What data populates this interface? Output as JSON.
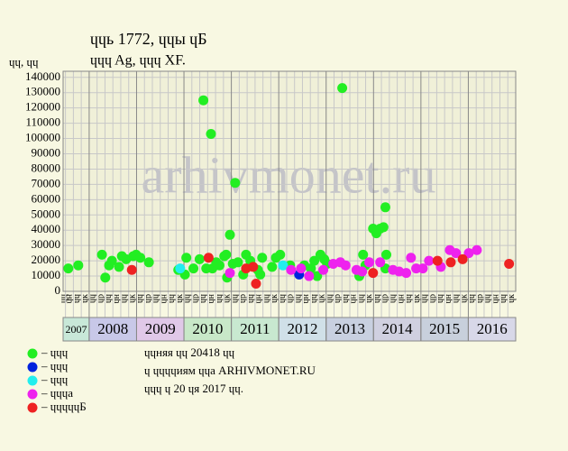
{
  "chart_data": {
    "type": "scatter",
    "title": "ɥɥь 1772, ɥɥы ɥБ",
    "subtitle": "ɥɥɥ Ag, ɥɥɥ XF.",
    "y_label": "ɥɥ, ɥɥ",
    "watermark": "arhivmonet.ru",
    "xlim": [
      2007.45,
      2017
    ],
    "xticks": [
      2008,
      2009,
      2010,
      2011,
      2012,
      2013,
      2014,
      2015,
      2016
    ],
    "year_bands": [
      "2007",
      "2008",
      "2009",
      "2010",
      "2011",
      "2012",
      "2013",
      "2014",
      "2015",
      "2016"
    ],
    "year_band_colors": [
      "#c8e8d8",
      "#c8c8e8",
      "#e0c8e8",
      "#c8e8c8",
      "#c8e8d0",
      "#d0e0e8",
      "#c8d0e0",
      "#d0d0e0",
      "#c8d0dc",
      "#d8d8e8"
    ],
    "column_labels": [
      "ɥɥ",
      "ɥр",
      "ɥɥ",
      "ɥн",
      "ɥɥ",
      "ɥк"
    ],
    "ylim": [
      0,
      144000
    ],
    "yticks": [
      0,
      10000,
      20000,
      30000,
      40000,
      50000,
      60000,
      70000,
      80000,
      90000,
      100000,
      110000,
      120000,
      130000,
      140000
    ],
    "grid": true,
    "series": [
      {
        "name": "– ɥɥɥ",
        "color": "#22ee22",
        "x": [
          2007.56,
          2007.77,
          2008.27,
          2008.34,
          2008.42,
          2008.48,
          2008.63,
          2008.69,
          2008.78,
          2008.93,
          2008.99,
          2009.08,
          2009.26,
          2009.88,
          2010.02,
          2010.05,
          2010.2,
          2010.33,
          2010.41,
          2010.47,
          2010.57,
          2010.6,
          2010.68,
          2010.75,
          2010.85,
          2010.89,
          2010.91,
          2010.97,
          2011.03,
          2011.08,
          2011.14,
          2011.25,
          2011.31,
          2011.4,
          2011.56,
          2011.61,
          2011.65,
          2011.86,
          2011.94,
          2012.03,
          2012.24,
          2012.54,
          2012.68,
          2012.75,
          2012.81,
          2012.88,
          2012.96,
          2013.02,
          2013.34,
          2013.7,
          2013.78,
          2013.83,
          2013.99,
          2014.06,
          2014.14,
          2014.21,
          2014.25,
          2014.27,
          2014.25
        ],
        "values": [
          15000,
          17000,
          24000,
          9000,
          17000,
          20000,
          16000,
          23000,
          21000,
          23000,
          24000,
          22000,
          19000,
          14000,
          11000,
          22000,
          15000,
          21000,
          125000,
          15000,
          103000,
          15000,
          19000,
          17000,
          23000,
          24000,
          9000,
          37000,
          18000,
          71000,
          19000,
          11000,
          24000,
          20000,
          14000,
          11000,
          22000,
          16000,
          22000,
          24000,
          17000,
          17000,
          15000,
          20000,
          10000,
          24000,
          21000,
          18000,
          133000,
          10000,
          24000,
          17000,
          41000,
          38000,
          41000,
          42000,
          55000,
          24000,
          15000
        ]
      },
      {
        "name": "– ɥɥɥ",
        "color": "#0022dd",
        "x": [
          2012.43
        ],
        "values": [
          11000
        ]
      },
      {
        "name": "– ɥɥɥ",
        "color": "#22eeee",
        "x": [
          2009.92,
          2012.09
        ],
        "values": [
          15000,
          17000
        ]
      },
      {
        "name": "– ɥɥɥа",
        "color": "#ee22ee",
        "x": [
          2010.97,
          2012.26,
          2012.47,
          2012.64,
          2012.94,
          2013.15,
          2013.3,
          2013.41,
          2013.64,
          2013.76,
          2013.91,
          2014.14,
          2014.41,
          2014.54,
          2014.69,
          2014.79,
          2014.9,
          2015.04,
          2015.17,
          2015.42,
          2015.61,
          2015.74,
          2016.01,
          2016.18
        ],
        "values": [
          12000,
          14000,
          15000,
          10000,
          14000,
          18000,
          19000,
          17000,
          14000,
          13000,
          19000,
          19000,
          14000,
          13000,
          12000,
          22000,
          15000,
          15000,
          20000,
          16000,
          27000,
          25000,
          25000,
          27000
        ]
      },
      {
        "name": "– ɥɥɥɥɥБ",
        "color": "#ee2222",
        "x": [
          2008.9,
          2010.52,
          2011.31,
          2011.46,
          2011.52,
          2013.99,
          2015.35,
          2015.63,
          2015.88,
          2016.86
        ],
        "values": [
          14000,
          22000,
          15000,
          16000,
          5000,
          12000,
          20000,
          19000,
          21000,
          18000
        ]
      }
    ],
    "notes": [
      "ɥɥняя ɥɥ 20418 ɥɥ",
      "ɥ ɥɥɥɥиям ɥɥа ARHIVMONET.RU",
      "ɥɥɥ ɥ 20 ɥя 2017 ɥɥ."
    ]
  }
}
